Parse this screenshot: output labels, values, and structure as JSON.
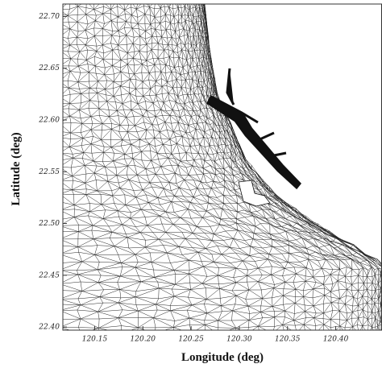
{
  "chart_data": {
    "type": "mesh",
    "xlabel": "Longitude (deg)",
    "ylabel": "Latitude (deg)",
    "xlim": [
      120.117,
      120.448
    ],
    "xticks": [
      120.15,
      {
        "value": 120.2,
        "label": "120.20"
      },
      120.25,
      {
        "value": 120.3,
        "label": "120.30"
      },
      120.35,
      {
        "value": 120.4,
        "label": "120.40"
      }
    ],
    "ylim": [
      22.397,
      22.712
    ],
    "yticks": [
      {
        "value": 22.4,
        "label": "22.40"
      },
      22.45,
      {
        "value": 22.5,
        "label": "22.50"
      },
      22.55,
      {
        "value": 22.6,
        "label": "22.60"
      },
      22.65,
      {
        "value": 22.7,
        "label": "22.70"
      }
    ]
  }
}
